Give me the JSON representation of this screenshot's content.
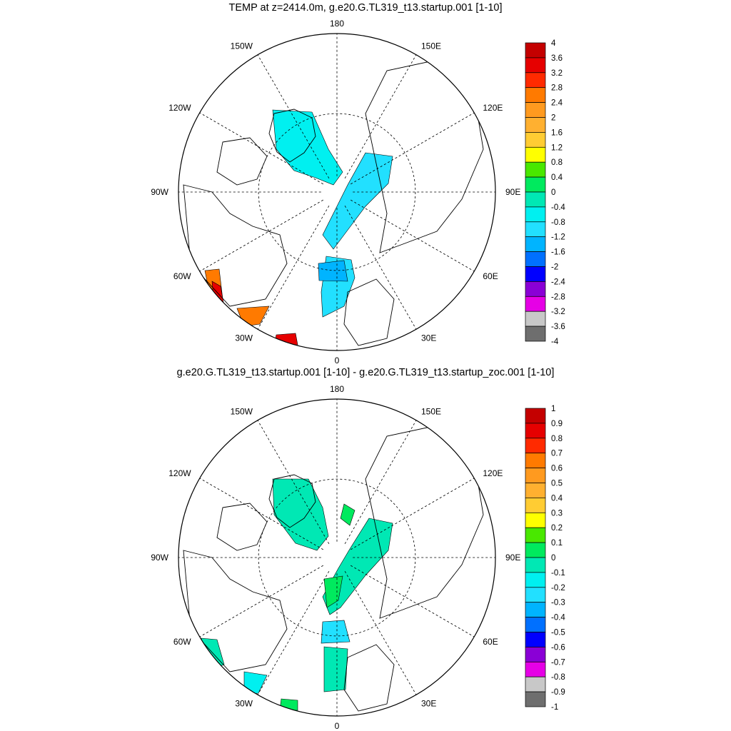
{
  "chart_data": [
    {
      "type": "polar-contour-map",
      "title": "TEMP at z=2414.0m, g.e20.G.TL319_t13.startup.001 [1-10]",
      "projection": "north-polar-stereographic",
      "lon_labels": [
        "180",
        "150E",
        "120E",
        "90E",
        "60E",
        "30E",
        "0",
        "30W",
        "60W",
        "90W",
        "120W",
        "150W"
      ],
      "colorbar": {
        "levels": [
          "4",
          "3.6",
          "3.2",
          "2.8",
          "2.4",
          "2",
          "1.6",
          "1.2",
          "0.8",
          "0.4",
          "0",
          "-0.4",
          "-0.8",
          "-1.2",
          "-1.6",
          "-2",
          "-2.4",
          "-2.8",
          "-3.2",
          "-3.6",
          "-4"
        ],
        "colors": [
          "#c40000",
          "#e60000",
          "#ff2a00",
          "#ff7a00",
          "#ff9a1f",
          "#ffb030",
          "#ffcc33",
          "#ffff00",
          "#49e800",
          "#00ea5e",
          "#00e8b4",
          "#00f0f0",
          "#22e0ff",
          "#00b4ff",
          "#0070ff",
          "#0000ff",
          "#8a00d6",
          "#e600e6",
          "#c8c8c8",
          "#6e6e6e"
        ]
      }
    },
    {
      "type": "polar-contour-map",
      "title": "g.e20.G.TL319_t13.startup.001 [1-10] - g.e20.G.TL319_t13.startup_zoc.001 [1-10]",
      "projection": "north-polar-stereographic",
      "lon_labels": [
        "180",
        "150E",
        "120E",
        "90E",
        "60E",
        "30E",
        "0",
        "30W",
        "60W",
        "90W",
        "120W",
        "150W"
      ],
      "colorbar": {
        "levels": [
          "1",
          "0.9",
          "0.8",
          "0.7",
          "0.6",
          "0.5",
          "0.4",
          "0.3",
          "0.2",
          "0.1",
          "0",
          "-0.1",
          "-0.2",
          "-0.3",
          "-0.4",
          "-0.5",
          "-0.6",
          "-0.7",
          "-0.8",
          "-0.9",
          "-1"
        ],
        "colors": [
          "#c40000",
          "#e60000",
          "#ff2a00",
          "#ff7a00",
          "#ff9a1f",
          "#ffb030",
          "#ffcc33",
          "#ffff00",
          "#49e800",
          "#00ea5e",
          "#00e8b4",
          "#00f0f0",
          "#22e0ff",
          "#00b4ff",
          "#0070ff",
          "#0000ff",
          "#8a00d6",
          "#e600e6",
          "#c8c8c8",
          "#6e6e6e"
        ]
      }
    }
  ]
}
